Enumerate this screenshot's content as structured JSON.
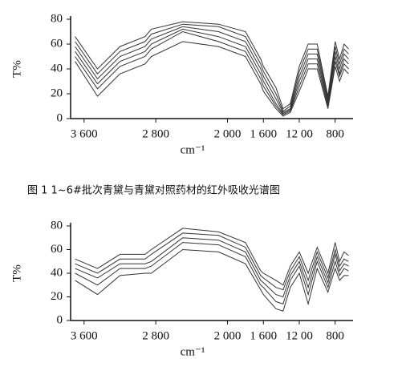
{
  "caption": "图 1   1~6#批次青黛与青黛对照药材的红外吸收光谱图",
  "chart_data": [
    {
      "type": "line",
      "ylabel": "T%",
      "xlabel": "cm⁻¹",
      "xlim": [
        3750,
        600
      ],
      "ylim": [
        0,
        80
      ],
      "xticks": [
        {
          "value": 3600,
          "label": "3 600"
        },
        {
          "value": 2800,
          "label": "2 800"
        },
        {
          "value": 2000,
          "label": "2 000"
        },
        {
          "value": 1600,
          "label": "1 600"
        },
        {
          "value": 1200,
          "label": "12 00"
        },
        800
      ],
      "yticks": [
        0,
        20,
        40,
        60,
        80
      ],
      "x": [
        3700,
        3450,
        3200,
        2920,
        2850,
        2500,
        2100,
        1800,
        1630,
        1600,
        1460,
        1380,
        1300,
        1200,
        1100,
        1000,
        880,
        800,
        750,
        700,
        650
      ],
      "series": [
        {
          "color": "#333",
          "values": [
            66,
            40,
            58,
            66,
            72,
            78,
            76,
            70,
            48,
            42,
            25,
            8,
            12,
            42,
            60,
            60,
            18,
            62,
            48,
            60,
            56
          ]
        },
        {
          "color": "#333",
          "values": [
            62,
            36,
            54,
            62,
            68,
            76,
            74,
            66,
            44,
            38,
            20,
            6,
            10,
            38,
            56,
            56,
            16,
            58,
            44,
            56,
            52
          ]
        },
        {
          "color": "#333",
          "values": [
            58,
            32,
            50,
            58,
            64,
            74,
            70,
            62,
            40,
            34,
            16,
            5,
            8,
            34,
            52,
            52,
            14,
            54,
            40,
            52,
            48
          ]
        },
        {
          "color": "#333",
          "values": [
            54,
            28,
            46,
            54,
            60,
            72,
            66,
            58,
            36,
            30,
            12,
            4,
            7,
            30,
            48,
            48,
            12,
            50,
            36,
            48,
            44
          ]
        },
        {
          "color": "#333",
          "values": [
            50,
            24,
            42,
            50,
            56,
            70,
            62,
            54,
            32,
            26,
            10,
            3,
            6,
            26,
            44,
            44,
            10,
            46,
            34,
            44,
            40
          ]
        },
        {
          "color": "#333",
          "values": [
            46,
            18,
            36,
            44,
            50,
            62,
            58,
            50,
            28,
            22,
            8,
            2,
            5,
            22,
            40,
            40,
            8,
            42,
            30,
            40,
            36
          ]
        }
      ]
    },
    {
      "type": "line",
      "ylabel": "T%",
      "xlabel": "cm⁻¹",
      "xlim": [
        3750,
        600
      ],
      "ylim": [
        0,
        80
      ],
      "xticks": [
        {
          "value": 3600,
          "label": "3 600"
        },
        {
          "value": 2800,
          "label": "2 800"
        },
        {
          "value": 2000,
          "label": "2 000"
        },
        {
          "value": 1600,
          "label": "1 600"
        },
        {
          "value": 1200,
          "label": "12 00"
        },
        800
      ],
      "yticks": [
        0,
        20,
        40,
        60,
        80
      ],
      "x": [
        3700,
        3450,
        3200,
        2920,
        2850,
        2500,
        2100,
        1800,
        1630,
        1600,
        1460,
        1380,
        1300,
        1200,
        1100,
        1000,
        880,
        800,
        750,
        700,
        650
      ],
      "series": [
        {
          "color": "#333",
          "values": [
            52,
            44,
            56,
            56,
            60,
            78,
            75,
            66,
            42,
            40,
            34,
            30,
            46,
            58,
            40,
            62,
            40,
            66,
            50,
            58,
            55
          ]
        },
        {
          "color": "#333",
          "values": [
            48,
            40,
            52,
            52,
            56,
            74,
            72,
            62,
            38,
            36,
            28,
            26,
            42,
            54,
            34,
            58,
            36,
            60,
            46,
            52,
            50
          ]
        },
        {
          "color": "#333",
          "values": [
            44,
            36,
            48,
            48,
            50,
            70,
            68,
            58,
            34,
            32,
            22,
            20,
            38,
            50,
            28,
            54,
            32,
            56,
            42,
            48,
            46
          ]
        },
        {
          "color": "#333",
          "values": [
            40,
            30,
            44,
            44,
            46,
            66,
            64,
            54,
            30,
            28,
            16,
            14,
            34,
            46,
            22,
            50,
            28,
            50,
            38,
            44,
            42
          ]
        },
        {
          "color": "#333",
          "values": [
            34,
            22,
            38,
            40,
            40,
            60,
            58,
            48,
            26,
            22,
            10,
            8,
            28,
            40,
            14,
            44,
            24,
            44,
            34,
            38,
            38
          ]
        }
      ]
    }
  ]
}
